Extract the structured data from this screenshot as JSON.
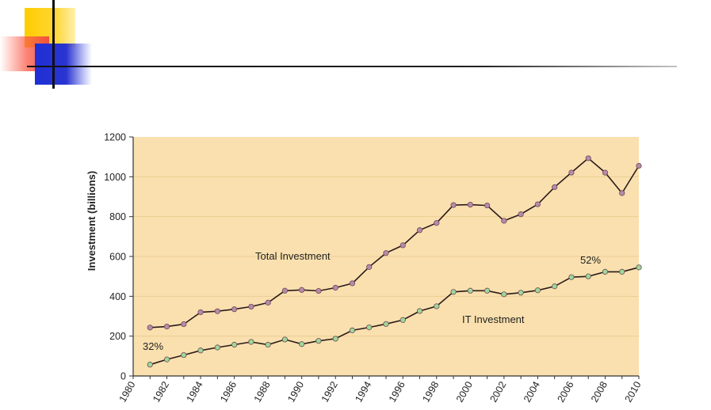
{
  "chart_data": {
    "type": "line",
    "title": "",
    "xlabel": "",
    "ylabel": "Investment (billions)",
    "ylim": [
      0,
      1200
    ],
    "xlim": [
      1980,
      2010
    ],
    "yticks": [
      "0",
      "200",
      "400",
      "600",
      "800",
      "1000",
      "1200"
    ],
    "xticks": [
      "1980",
      "1982",
      "1984",
      "1986",
      "1988",
      "1990",
      "1992",
      "1994",
      "1996",
      "1998",
      "2000",
      "2002",
      "2004",
      "2006",
      "2008",
      "2010"
    ],
    "x": [
      1981,
      1982,
      1983,
      1984,
      1985,
      1986,
      1987,
      1988,
      1989,
      1990,
      1991,
      1992,
      1993,
      1994,
      1995,
      1996,
      1997,
      1998,
      1999,
      2000,
      2001,
      2002,
      2003,
      2004,
      2005,
      2006,
      2007,
      2008,
      2009,
      2010
    ],
    "series": [
      {
        "name": "Total Investment",
        "values": [
          243,
          248,
          260,
          320,
          325,
          335,
          348,
          368,
          428,
          432,
          427,
          443,
          465,
          547,
          617,
          656,
          732,
          768,
          858,
          860,
          856,
          779,
          812,
          862,
          948,
          1021,
          1093,
          1021,
          918,
          1055
        ]
      },
      {
        "name": "IT Investment",
        "values": [
          57,
          83,
          105,
          128,
          143,
          157,
          171,
          157,
          183,
          160,
          176,
          187,
          229,
          244,
          261,
          281,
          326,
          350,
          422,
          428,
          428,
          410,
          418,
          430,
          450,
          496,
          500,
          523,
          523,
          545
        ]
      }
    ],
    "annotations": [
      "32%",
      "52%"
    ],
    "background": "#fae0ae",
    "colors": {
      "total_marker": "#b98aa8",
      "it_marker": "#9fd898",
      "line": "#2a1a1a"
    }
  }
}
